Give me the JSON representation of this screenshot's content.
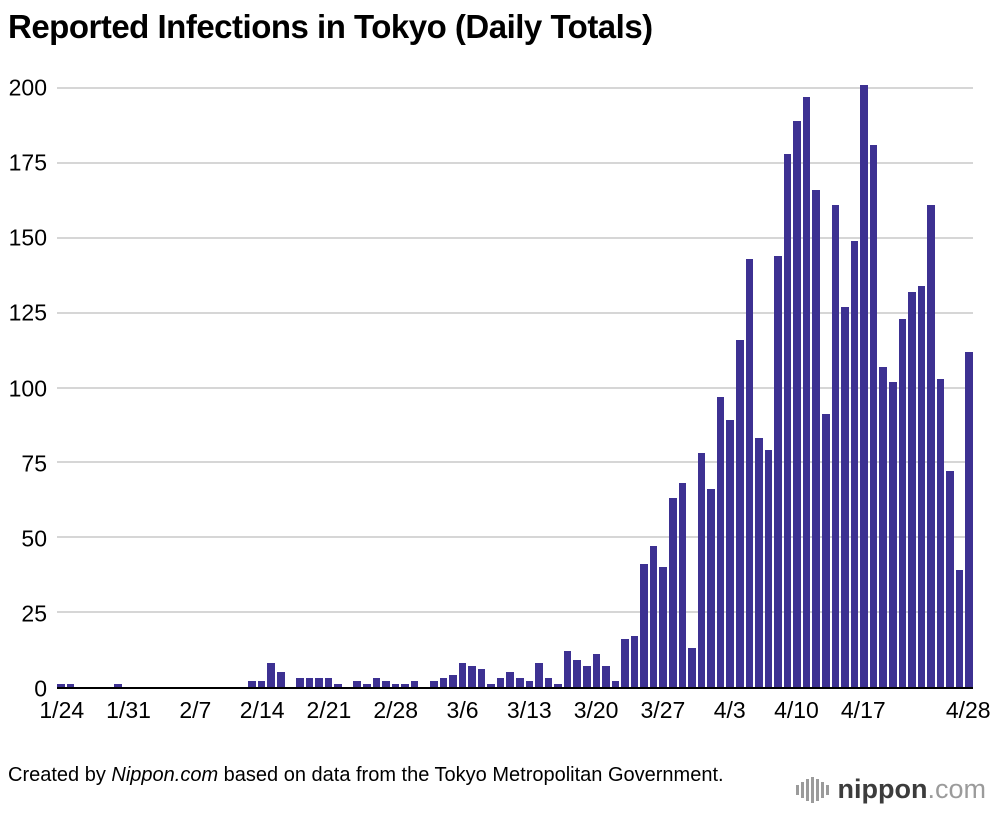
{
  "title": "Reported Infections in Tokyo (Daily Totals)",
  "footer": {
    "prefix": "Created by ",
    "source_name": "Nippon.com",
    "suffix": " based on data from the Tokyo Metropolitan Government."
  },
  "logo": {
    "icon": "soundwave-bars-icon",
    "name": "nippon",
    "tld": ".com"
  },
  "chart_data": {
    "type": "bar",
    "title": "Reported Infections in Tokyo (Daily Totals)",
    "bar_color": "#3d3192",
    "grid_color": "#d6d6d6",
    "axis_color": "#000000",
    "grid": true,
    "legend": false,
    "ylim": [
      0,
      200
    ],
    "yticks": [
      0,
      25,
      50,
      75,
      100,
      125,
      150,
      175,
      200
    ],
    "xtick_labels": [
      "1/24",
      "1/31",
      "2/7",
      "2/14",
      "2/21",
      "2/28",
      "3/6",
      "3/13",
      "3/20",
      "3/27",
      "4/3",
      "4/10",
      "4/17",
      "4/28"
    ],
    "xtick_indices": [
      0,
      7,
      14,
      21,
      28,
      35,
      42,
      49,
      56,
      63,
      70,
      77,
      84,
      95
    ],
    "dates": [
      "1/24",
      "1/25",
      "1/26",
      "1/27",
      "1/28",
      "1/29",
      "1/30",
      "1/31",
      "2/1",
      "2/2",
      "2/3",
      "2/4",
      "2/5",
      "2/6",
      "2/7",
      "2/8",
      "2/9",
      "2/10",
      "2/11",
      "2/12",
      "2/13",
      "2/14",
      "2/15",
      "2/16",
      "2/17",
      "2/18",
      "2/19",
      "2/20",
      "2/21",
      "2/22",
      "2/23",
      "2/24",
      "2/25",
      "2/26",
      "2/27",
      "2/28",
      "2/29",
      "3/1",
      "3/2",
      "3/3",
      "3/4",
      "3/5",
      "3/6",
      "3/7",
      "3/8",
      "3/9",
      "3/10",
      "3/11",
      "3/12",
      "3/13",
      "3/14",
      "3/15",
      "3/16",
      "3/17",
      "3/18",
      "3/19",
      "3/20",
      "3/21",
      "3/22",
      "3/23",
      "3/24",
      "3/25",
      "3/26",
      "3/27",
      "3/28",
      "3/29",
      "3/30",
      "3/31",
      "4/1",
      "4/2",
      "4/3",
      "4/4",
      "4/5",
      "4/6",
      "4/7",
      "4/8",
      "4/9",
      "4/10",
      "4/11",
      "4/12",
      "4/13",
      "4/14",
      "4/15",
      "4/16",
      "4/17",
      "4/18",
      "4/19",
      "4/20",
      "4/21",
      "4/22",
      "4/23",
      "4/24",
      "4/25",
      "4/26",
      "4/27",
      "4/28"
    ],
    "values": [
      1,
      1,
      0,
      0,
      0,
      0,
      1,
      0,
      0,
      0,
      0,
      0,
      0,
      0,
      0,
      0,
      0,
      0,
      0,
      0,
      2,
      2,
      8,
      5,
      0,
      3,
      3,
      3,
      3,
      1,
      0,
      2,
      1,
      3,
      2,
      1,
      1,
      2,
      0,
      2,
      3,
      4,
      8,
      7,
      6,
      1,
      3,
      5,
      3,
      2,
      8,
      3,
      1,
      12,
      9,
      7,
      11,
      7,
      2,
      16,
      17,
      41,
      47,
      40,
      63,
      68,
      13,
      78,
      66,
      97,
      89,
      116,
      143,
      83,
      79,
      144,
      178,
      189,
      197,
      166,
      91,
      161,
      127,
      149,
      201,
      181,
      107,
      102,
      123,
      132,
      134,
      161,
      103,
      72,
      39,
      112
    ]
  }
}
